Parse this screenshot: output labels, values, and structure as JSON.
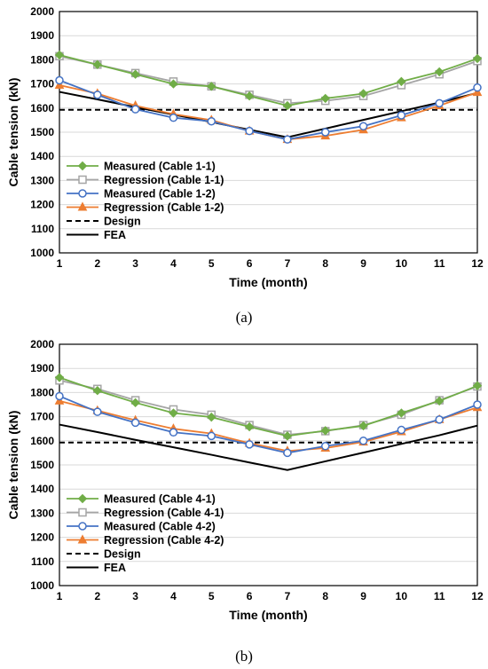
{
  "chart_data": [
    {
      "type": "line",
      "title": "",
      "xlabel": "Time (month)",
      "ylabel": "Cable tension (kN)",
      "xlim": [
        1,
        12
      ],
      "ylim": [
        1000,
        2000
      ],
      "x": [
        1,
        2,
        3,
        4,
        5,
        6,
        7,
        8,
        9,
        10,
        11,
        12
      ],
      "xticks": [
        "1",
        "2",
        "3",
        "4",
        "5",
        "6",
        "7",
        "8",
        "9",
        "10",
        "11",
        "12"
      ],
      "yticks": [
        "1000",
        "1100",
        "1200",
        "1300",
        "1400",
        "1500",
        "1600",
        "1700",
        "1800",
        "1900",
        "2000"
      ],
      "grid": "horizontal",
      "legend_position": "bottom-left",
      "series": [
        {
          "name": "Measured (Cable 1-1)",
          "values": [
            1820,
            1780,
            1740,
            1700,
            1690,
            1650,
            1610,
            1640,
            1660,
            1710,
            1750,
            1805
          ],
          "color": "#70ad47",
          "marker": "diamond",
          "dash": "solid"
        },
        {
          "name": "Regression (Cable 1-1)",
          "values": [
            1815,
            1780,
            1745,
            1710,
            1690,
            1655,
            1620,
            1630,
            1650,
            1695,
            1740,
            1795
          ],
          "color": "#a5a5a5",
          "marker": "square",
          "dash": "solid"
        },
        {
          "name": "Measured (Cable 1-2)",
          "values": [
            1715,
            1655,
            1595,
            1560,
            1545,
            1505,
            1470,
            1500,
            1525,
            1570,
            1620,
            1685
          ],
          "color": "#4472c4",
          "marker": "circle",
          "dash": "solid"
        },
        {
          "name": "Regression (Cable 1-2)",
          "values": [
            1695,
            1660,
            1610,
            1575,
            1550,
            1505,
            1470,
            1485,
            1510,
            1560,
            1610,
            1665
          ],
          "color": "#ed7d31",
          "marker": "triangle",
          "dash": "solid"
        },
        {
          "name": "Design",
          "values": [
            1593,
            1593,
            1593,
            1593,
            1593,
            1593,
            1593,
            1593,
            1593,
            1593,
            1593,
            1593
          ],
          "color": "#000000",
          "marker": "none",
          "dash": "dashed"
        },
        {
          "name": "FEA",
          "values": [
            1667,
            1636,
            1604,
            1573,
            1542,
            1510,
            1479,
            1515,
            1551,
            1587,
            1623,
            1663
          ],
          "color": "#000000",
          "marker": "none",
          "dash": "solid"
        }
      ],
      "caption": "(a)"
    },
    {
      "type": "line",
      "title": "",
      "xlabel": "Time (month)",
      "ylabel": "Cable tension (kN)",
      "xlim": [
        1,
        12
      ],
      "ylim": [
        1000,
        2000
      ],
      "x": [
        1,
        2,
        3,
        4,
        5,
        6,
        7,
        8,
        9,
        10,
        11,
        12
      ],
      "xticks": [
        "1",
        "2",
        "3",
        "4",
        "5",
        "6",
        "7",
        "8",
        "9",
        "10",
        "11",
        "12"
      ],
      "yticks": [
        "1000",
        "1100",
        "1200",
        "1300",
        "1400",
        "1500",
        "1600",
        "1700",
        "1800",
        "1900",
        "2000"
      ],
      "grid": "horizontal",
      "legend_position": "bottom-left",
      "series": [
        {
          "name": "Measured (Cable 4-1)",
          "values": [
            1862,
            1808,
            1758,
            1715,
            1698,
            1658,
            1620,
            1642,
            1662,
            1715,
            1765,
            1828
          ],
          "color": "#70ad47",
          "marker": "diamond",
          "dash": "solid"
        },
        {
          "name": "Regression (Cable 4-1)",
          "values": [
            1850,
            1815,
            1768,
            1730,
            1708,
            1665,
            1625,
            1640,
            1665,
            1708,
            1768,
            1825
          ],
          "color": "#a5a5a5",
          "marker": "square",
          "dash": "solid"
        },
        {
          "name": "Measured (Cable 4-2)",
          "values": [
            1785,
            1720,
            1675,
            1635,
            1620,
            1585,
            1550,
            1578,
            1600,
            1645,
            1688,
            1750
          ],
          "color": "#4472c4",
          "marker": "circle",
          "dash": "solid"
        },
        {
          "name": "Regression (Cable 4-2)",
          "values": [
            1765,
            1725,
            1685,
            1650,
            1630,
            1590,
            1558,
            1570,
            1595,
            1638,
            1688,
            1738
          ],
          "color": "#ed7d31",
          "marker": "triangle",
          "dash": "solid"
        },
        {
          "name": "Design",
          "values": [
            1593,
            1593,
            1593,
            1593,
            1593,
            1593,
            1593,
            1593,
            1593,
            1593,
            1593,
            1593
          ],
          "color": "#000000",
          "marker": "none",
          "dash": "dashed"
        },
        {
          "name": "FEA",
          "values": [
            1667,
            1636,
            1604,
            1573,
            1542,
            1510,
            1479,
            1515,
            1551,
            1587,
            1623,
            1663
          ],
          "color": "#000000",
          "marker": "none",
          "dash": "solid"
        }
      ],
      "caption": "(b)"
    }
  ]
}
